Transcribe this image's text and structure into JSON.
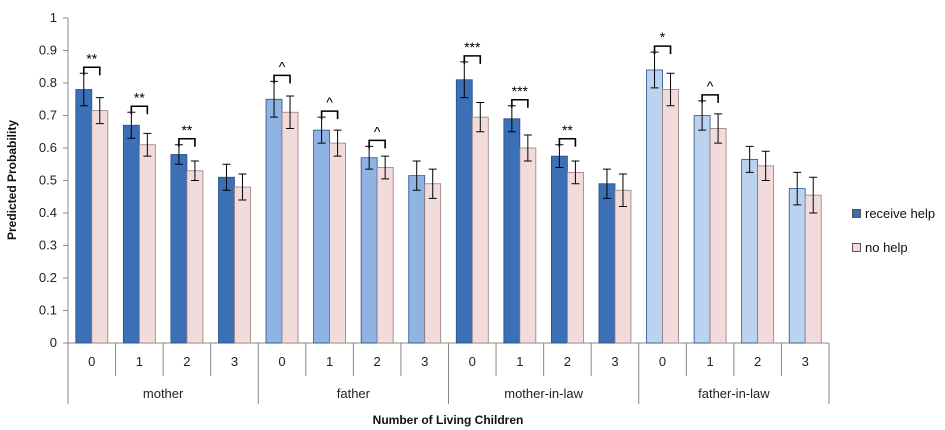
{
  "chart_data": {
    "type": "bar",
    "title": "",
    "xlabel": "Number of Living Children",
    "ylabel": "Predicted Probability",
    "ylim": [
      0,
      1
    ],
    "yticks": [
      "0",
      "0.1",
      "0.2",
      "0.3",
      "0.4",
      "0.5",
      "0.6",
      "0.7",
      "0.8",
      "0.9",
      "1"
    ],
    "groups": [
      "mother",
      "father",
      "mother-in-law",
      "father-in-law"
    ],
    "categories": [
      "0",
      "1",
      "2",
      "3"
    ],
    "legend_position": "right",
    "series": [
      {
        "name": "receive help",
        "values": [
          [
            0.78,
            0.67,
            0.58,
            0.51
          ],
          [
            0.75,
            0.655,
            0.57,
            0.515
          ],
          [
            0.81,
            0.69,
            0.575,
            0.49
          ],
          [
            0.84,
            0.7,
            0.565,
            0.475
          ]
        ],
        "err": [
          [
            0.05,
            0.04,
            0.03,
            0.04
          ],
          [
            0.055,
            0.04,
            0.035,
            0.045
          ],
          [
            0.055,
            0.04,
            0.035,
            0.045
          ],
          [
            0.055,
            0.045,
            0.04,
            0.05
          ]
        ]
      },
      {
        "name": "no help",
        "values": [
          [
            0.715,
            0.61,
            0.53,
            0.48
          ],
          [
            0.71,
            0.615,
            0.54,
            0.49
          ],
          [
            0.695,
            0.6,
            0.525,
            0.47
          ],
          [
            0.78,
            0.66,
            0.545,
            0.455
          ]
        ],
        "err": [
          [
            0.04,
            0.035,
            0.03,
            0.04
          ],
          [
            0.05,
            0.04,
            0.035,
            0.045
          ],
          [
            0.045,
            0.04,
            0.035,
            0.05
          ],
          [
            0.05,
            0.045,
            0.045,
            0.055
          ]
        ]
      }
    ],
    "colors": {
      "receive_help": [
        "#3b6fb6",
        "#8fb4e3",
        "#3b6fb6",
        "#bcd3f0"
      ],
      "no_help": "#f2dcdb",
      "axis": "#888888"
    },
    "significance": [
      [
        "**",
        "**",
        "**",
        ""
      ],
      [
        "^",
        "^",
        "^",
        ""
      ],
      [
        "***",
        "***",
        "**",
        ""
      ],
      [
        "*",
        "^",
        "",
        ""
      ]
    ]
  }
}
